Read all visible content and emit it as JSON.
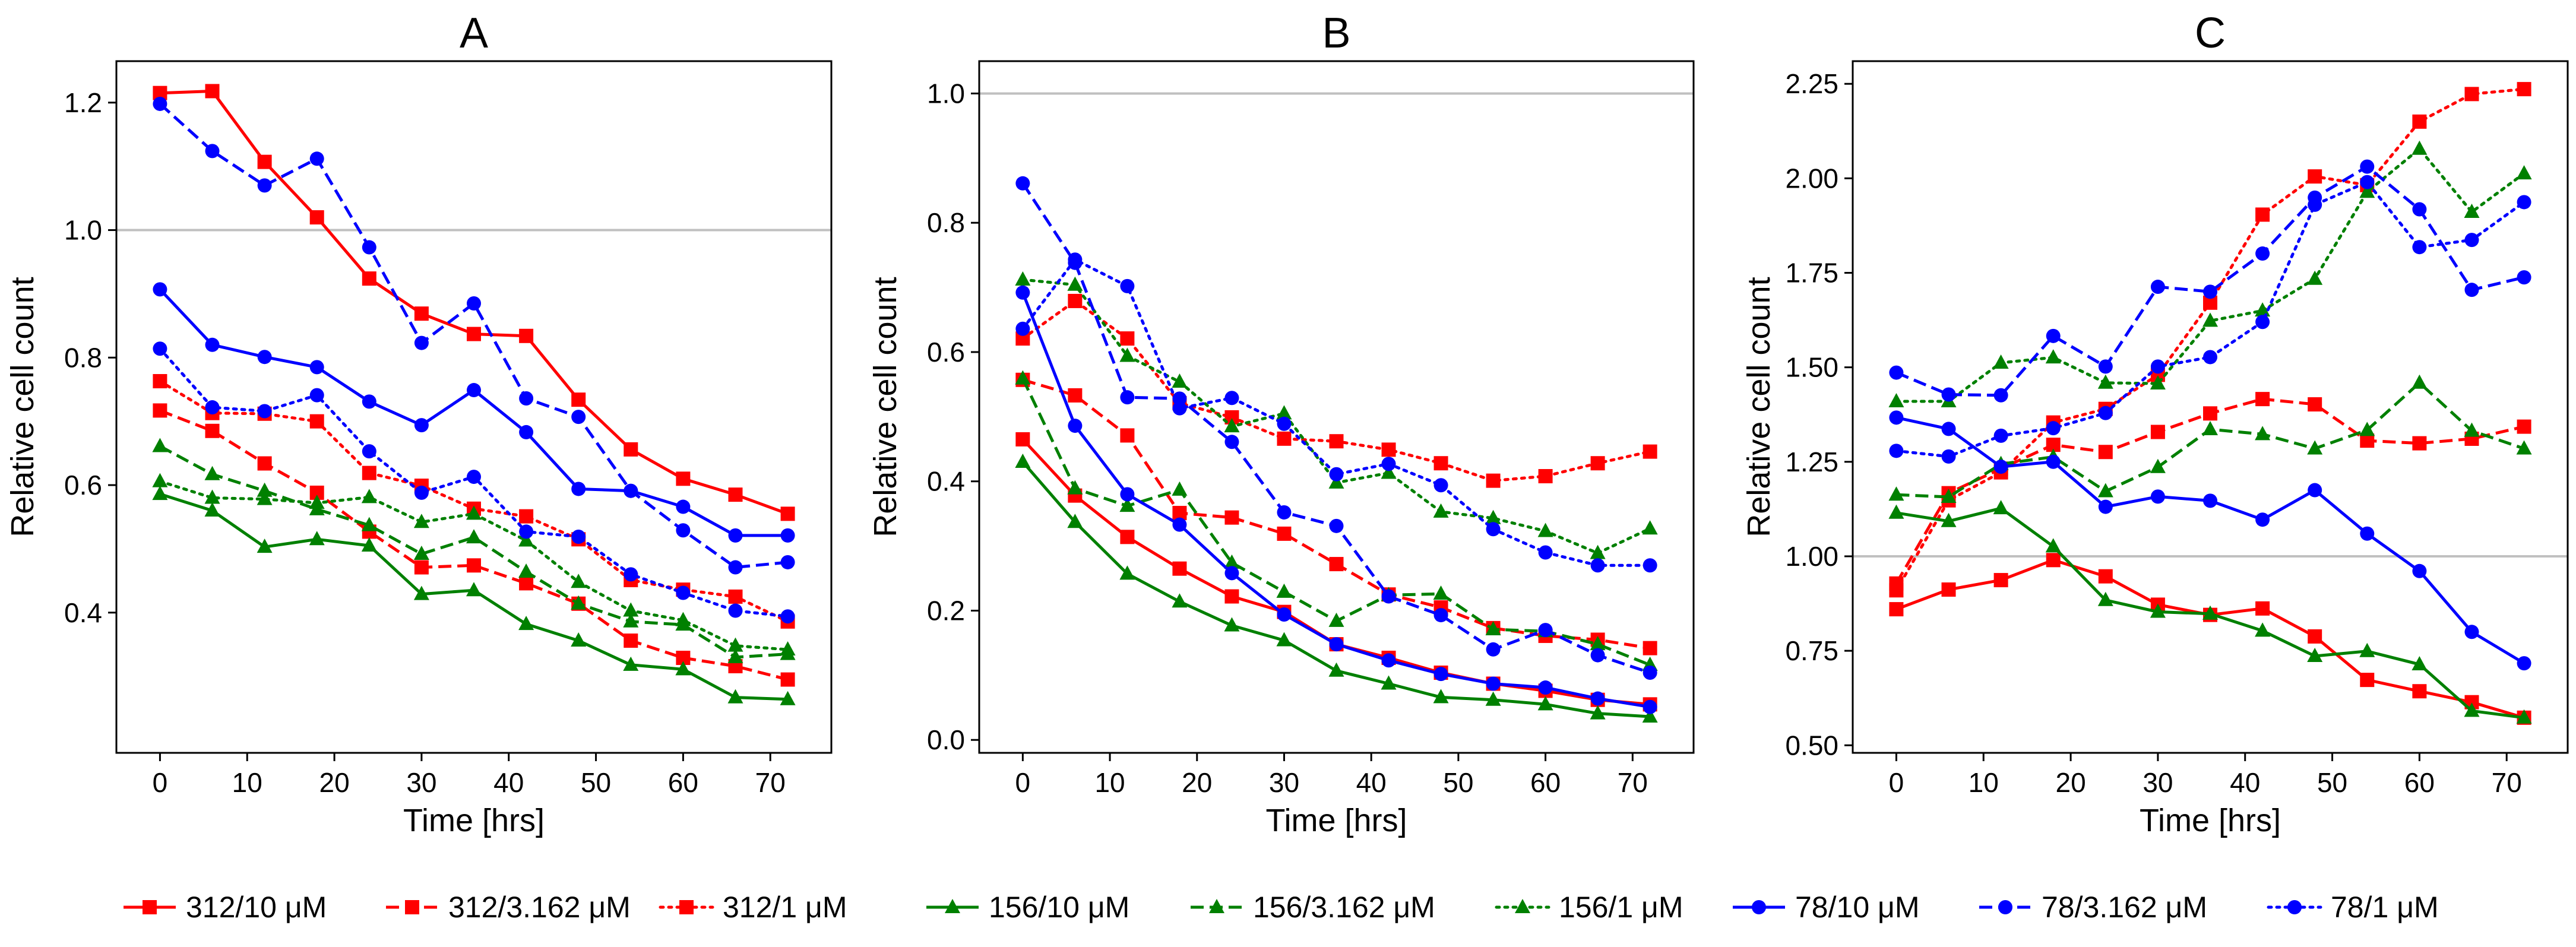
{
  "chart_data": [
    {
      "type": "line",
      "title": "A",
      "xlabel": "Time [hrs]",
      "ylabel": "Relative cell count",
      "xlim": [
        -5,
        77
      ],
      "ylim": [
        0.18,
        1.265
      ],
      "xticks": [
        0,
        10,
        20,
        30,
        40,
        50,
        60,
        70
      ],
      "yticks": [
        0.4,
        0.6,
        0.8,
        1.0,
        1.2
      ],
      "ytick_labels": [
        "0.4",
        "0.6",
        "0.8",
        "1.0",
        "1.2"
      ],
      "reference_line": 1.0,
      "x": [
        0,
        6,
        12,
        18,
        24,
        30,
        36,
        42,
        48,
        54,
        60,
        66,
        72
      ],
      "series": [
        {
          "name": "312/10 μM",
          "values": [
            1.215,
            1.218,
            1.107,
            1.02,
            0.924,
            0.869,
            0.837,
            0.834,
            0.734,
            0.656,
            0.61,
            0.585,
            0.555
          ]
        },
        {
          "name": "312/3.162 μM",
          "values": [
            0.717,
            0.685,
            0.634,
            0.588,
            0.527,
            0.471,
            0.474,
            0.446,
            0.414,
            0.356,
            0.329,
            0.316,
            0.295
          ]
        },
        {
          "name": "312/1 μM",
          "values": [
            0.763,
            0.713,
            0.712,
            0.7,
            0.619,
            0.599,
            0.563,
            0.551,
            0.515,
            0.451,
            0.436,
            0.425,
            0.386
          ]
        },
        {
          "name": "156/10 μM",
          "values": [
            0.586,
            0.56,
            0.503,
            0.515,
            0.505,
            0.429,
            0.435,
            0.382,
            0.356,
            0.318,
            0.311,
            0.267,
            0.264
          ]
        },
        {
          "name": "156/3.162 μM",
          "values": [
            0.661,
            0.617,
            0.591,
            0.562,
            0.537,
            0.492,
            0.518,
            0.464,
            0.414,
            0.386,
            0.381,
            0.33,
            0.335
          ]
        },
        {
          "name": "156/1 μM",
          "values": [
            0.606,
            0.58,
            0.578,
            0.572,
            0.581,
            0.542,
            0.555,
            0.513,
            0.448,
            0.403,
            0.388,
            0.348,
            0.342
          ]
        },
        {
          "name": "78/10 μM",
          "values": [
            0.907,
            0.82,
            0.801,
            0.785,
            0.731,
            0.694,
            0.749,
            0.683,
            0.594,
            0.591,
            0.566,
            0.521,
            0.521
          ]
        },
        {
          "name": "78/3.162 μM",
          "values": [
            1.198,
            1.124,
            1.07,
            1.112,
            0.973,
            0.823,
            0.885,
            0.736,
            0.707,
            0.591,
            0.529,
            0.471,
            0.479
          ]
        },
        {
          "name": "78/1 μM",
          "values": [
            0.814,
            0.722,
            0.716,
            0.741,
            0.653,
            0.588,
            0.613,
            0.527,
            0.519,
            0.46,
            0.431,
            0.403,
            0.394
          ]
        }
      ]
    },
    {
      "type": "line",
      "title": "B",
      "xlabel": "Time [hrs]",
      "ylabel": "Relative cell count",
      "xlim": [
        -5,
        77
      ],
      "ylim": [
        -0.02,
        1.05
      ],
      "xticks": [
        0,
        10,
        20,
        30,
        40,
        50,
        60,
        70
      ],
      "yticks": [
        0.0,
        0.2,
        0.4,
        0.6,
        0.8,
        1.0
      ],
      "ytick_labels": [
        "0.0",
        "0.2",
        "0.4",
        "0.6",
        "0.8",
        "1.0"
      ],
      "reference_line": 1.0,
      "x": [
        0,
        6,
        12,
        18,
        24,
        30,
        36,
        42,
        48,
        54,
        60,
        66,
        72
      ],
      "series": [
        {
          "name": "312/10 μM",
          "values": [
            0.465,
            0.378,
            0.314,
            0.265,
            0.222,
            0.198,
            0.148,
            0.127,
            0.104,
            0.087,
            0.076,
            0.062,
            0.055
          ]
        },
        {
          "name": "312/3.162 μM",
          "values": [
            0.557,
            0.533,
            0.471,
            0.351,
            0.344,
            0.319,
            0.272,
            0.225,
            0.205,
            0.173,
            0.161,
            0.155,
            0.142
          ]
        },
        {
          "name": "312/1 μM",
          "values": [
            0.621,
            0.679,
            0.621,
            0.521,
            0.499,
            0.466,
            0.462,
            0.449,
            0.428,
            0.401,
            0.408,
            0.428,
            0.446
          ]
        },
        {
          "name": "156/10 μM",
          "values": [
            0.43,
            0.337,
            0.257,
            0.214,
            0.177,
            0.154,
            0.107,
            0.087,
            0.066,
            0.062,
            0.055,
            0.041,
            0.036
          ]
        },
        {
          "name": "156/3.162 μM",
          "values": [
            0.559,
            0.389,
            0.362,
            0.387,
            0.274,
            0.229,
            0.184,
            0.224,
            0.226,
            0.171,
            0.168,
            0.148,
            0.116
          ]
        },
        {
          "name": "156/1 μM",
          "values": [
            0.712,
            0.704,
            0.594,
            0.554,
            0.485,
            0.505,
            0.398,
            0.413,
            0.353,
            0.343,
            0.323,
            0.289,
            0.327
          ]
        },
        {
          "name": "78/10 μM",
          "values": [
            0.692,
            0.486,
            0.38,
            0.333,
            0.258,
            0.194,
            0.148,
            0.123,
            0.102,
            0.087,
            0.081,
            0.064,
            0.051
          ]
        },
        {
          "name": "78/3.162 μM",
          "values": [
            0.861,
            0.738,
            0.53,
            0.528,
            0.461,
            0.352,
            0.331,
            0.222,
            0.193,
            0.14,
            0.17,
            0.131,
            0.104
          ]
        },
        {
          "name": "78/1 μM",
          "values": [
            0.636,
            0.743,
            0.702,
            0.513,
            0.529,
            0.489,
            0.411,
            0.427,
            0.394,
            0.326,
            0.29,
            0.27,
            0.27
          ]
        }
      ]
    },
    {
      "type": "line",
      "title": "C",
      "xlabel": "Time [hrs]",
      "ylabel": "Relative cell count",
      "xlim": [
        -5,
        77
      ],
      "ylim": [
        0.48,
        2.31
      ],
      "xticks": [
        0,
        10,
        20,
        30,
        40,
        50,
        60,
        70
      ],
      "yticks": [
        0.5,
        0.75,
        1.0,
        1.25,
        1.5,
        1.75,
        2.0,
        2.25
      ],
      "ytick_labels": [
        "0.50",
        "0.75",
        "1.00",
        "1.25",
        "1.50",
        "1.75",
        "2.00",
        "2.25"
      ],
      "reference_line": 1.0,
      "x": [
        0,
        6,
        12,
        18,
        24,
        30,
        36,
        42,
        48,
        54,
        60,
        66,
        72
      ],
      "series": [
        {
          "name": "312/10 μM",
          "values": [
            0.86,
            0.912,
            0.937,
            0.99,
            0.947,
            0.872,
            0.845,
            0.862,
            0.788,
            0.673,
            0.643,
            0.614,
            0.573
          ]
        },
        {
          "name": "312/3.162 μM",
          "values": [
            0.928,
            1.167,
            1.232,
            1.295,
            1.276,
            1.329,
            1.378,
            1.416,
            1.402,
            1.306,
            1.299,
            1.311,
            1.343
          ]
        },
        {
          "name": "312/1 μM",
          "values": [
            0.91,
            1.148,
            1.222,
            1.354,
            1.39,
            1.48,
            1.671,
            1.904,
            2.005,
            1.982,
            2.15,
            2.223,
            2.236
          ]
        },
        {
          "name": "156/10 μM",
          "values": [
            1.115,
            1.093,
            1.127,
            1.026,
            0.884,
            0.853,
            0.848,
            0.803,
            0.736,
            0.749,
            0.714,
            0.591,
            0.573
          ]
        },
        {
          "name": "156/3.162 μM",
          "values": [
            1.163,
            1.157,
            1.244,
            1.263,
            1.172,
            1.236,
            1.336,
            1.323,
            1.285,
            1.334,
            1.459,
            1.332,
            1.285
          ]
        },
        {
          "name": "156/1 μM",
          "values": [
            1.41,
            1.41,
            1.512,
            1.526,
            1.459,
            1.457,
            1.623,
            1.65,
            1.734,
            1.964,
            2.078,
            1.911,
            2.013
          ]
        },
        {
          "name": "78/10 μM",
          "values": [
            1.367,
            1.337,
            1.237,
            1.25,
            1.131,
            1.158,
            1.147,
            1.097,
            1.175,
            1.06,
            0.961,
            0.8,
            0.717
          ]
        },
        {
          "name": "78/3.162 μM",
          "values": [
            1.486,
            1.428,
            1.426,
            1.583,
            1.502,
            1.713,
            1.7,
            1.801,
            1.949,
            2.031,
            1.918,
            1.705,
            1.738
          ]
        },
        {
          "name": "78/1 μM",
          "values": [
            1.279,
            1.264,
            1.319,
            1.339,
            1.379,
            1.502,
            1.527,
            1.62,
            1.93,
            1.99,
            1.818,
            1.837,
            1.937
          ]
        }
      ]
    }
  ],
  "legend": {
    "placement": "bottom",
    "entries": [
      {
        "label": "312/10 μM",
        "color": "#ff0000",
        "dash": "solid",
        "marker": "square"
      },
      {
        "label": "312/3.162 μM",
        "color": "#ff0000",
        "dash": "dashed",
        "marker": "square"
      },
      {
        "label": "312/1 μM",
        "color": "#ff0000",
        "dash": "dotted",
        "marker": "square"
      },
      {
        "label": "156/10 μM",
        "color": "#008000",
        "dash": "solid",
        "marker": "triangle"
      },
      {
        "label": "156/3.162 μM",
        "color": "#008000",
        "dash": "dashed",
        "marker": "triangle"
      },
      {
        "label": "156/1 μM",
        "color": "#008000",
        "dash": "dotted",
        "marker": "triangle"
      },
      {
        "label": "78/10 μM",
        "color": "#0000ff",
        "dash": "solid",
        "marker": "circle"
      },
      {
        "label": "78/3.162 μM",
        "color": "#0000ff",
        "dash": "dashed",
        "marker": "circle"
      },
      {
        "label": "78/1 μM",
        "color": "#0000ff",
        "dash": "dotted",
        "marker": "circle"
      }
    ]
  },
  "colors": {
    "reference_line": "#c0c0c0",
    "axes": "#000000"
  }
}
